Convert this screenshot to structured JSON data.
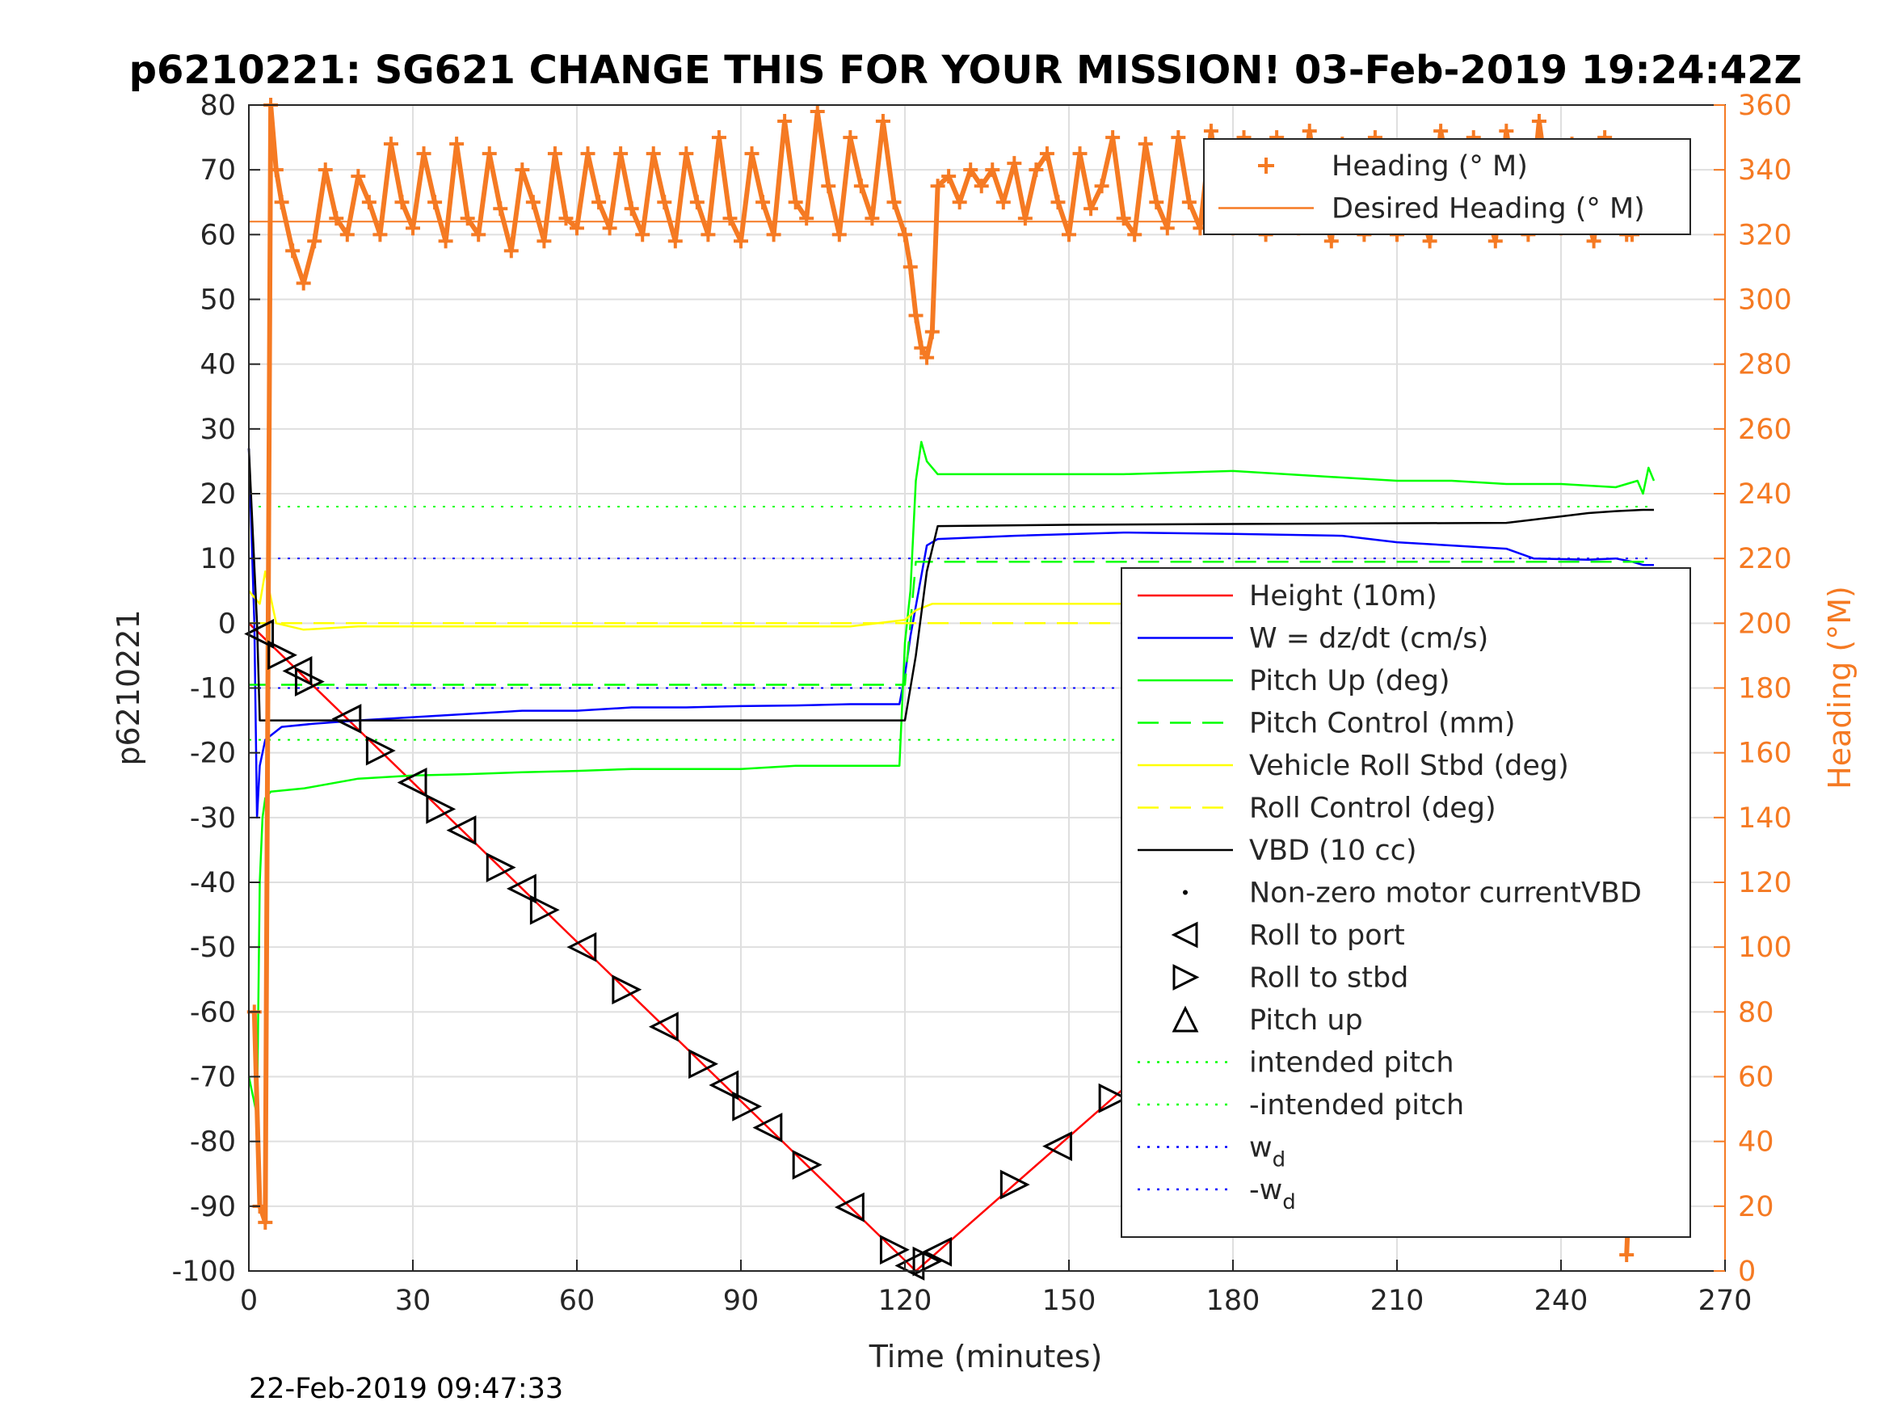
{
  "chart_data": {
    "type": "line",
    "title": "p6210221: SG621 CHANGE THIS FOR YOUR MISSION! 03-Feb-2019 19:24:42Z",
    "xlabel": "Time (minutes)",
    "ylabel": "p6210221",
    "y2label": "Heading (°M)",
    "footer": "22-Feb-2019 09:47:33",
    "xlim": [
      0,
      270
    ],
    "ylim": [
      -100,
      80
    ],
    "y2lim": [
      0,
      360
    ],
    "x_ticks": [
      "0",
      "30",
      "60",
      "90",
      "120",
      "150",
      "180",
      "210",
      "240",
      "270"
    ],
    "y_ticks": [
      "-100",
      "-90",
      "-80",
      "-70",
      "-60",
      "-50",
      "-40",
      "-30",
      "-20",
      "-10",
      "0",
      "10",
      "20",
      "30",
      "40",
      "50",
      "60",
      "70",
      "80"
    ],
    "y2_ticks": [
      "0",
      "20",
      "40",
      "60",
      "80",
      "100",
      "120",
      "140",
      "160",
      "180",
      "200",
      "220",
      "240",
      "260",
      "280",
      "300",
      "320",
      "340",
      "360"
    ],
    "grid": true,
    "legend_heading": [
      {
        "label": "Heading (° M)",
        "color": "#F57A23",
        "style": "marker-plus"
      },
      {
        "label": "Desired Heading (° M)",
        "color": "#F57A23",
        "style": "solid"
      }
    ],
    "legend_main": [
      {
        "label": "Height (10m)",
        "color": "#FF0000",
        "style": "solid"
      },
      {
        "label": "W = dz/dt (cm/s)",
        "color": "#0000FF",
        "style": "solid"
      },
      {
        "label": "Pitch Up (deg)",
        "color": "#00FF00",
        "style": "solid"
      },
      {
        "label": "Pitch Control (mm)",
        "color": "#00FF00",
        "style": "dashed"
      },
      {
        "label": "Vehicle Roll Stbd (deg)",
        "color": "#FFFF00",
        "style": "solid"
      },
      {
        "label": "Roll Control (deg)",
        "color": "#FFFF00",
        "style": "dashed"
      },
      {
        "label": "VBD (10 cc)",
        "color": "#000000",
        "style": "solid"
      },
      {
        "label": "Non-zero motor currentVBD",
        "color": "#000000",
        "style": "dot"
      },
      {
        "label": "Roll to port",
        "color": "#000000",
        "style": "tri-left"
      },
      {
        "label": "Roll to stbd",
        "color": "#000000",
        "style": "tri-right"
      },
      {
        "label": "Pitch up",
        "color": "#000000",
        "style": "tri-up"
      },
      {
        "label": "intended pitch",
        "color": "#00FF00",
        "style": "dotted"
      },
      {
        "label": "-intended pitch",
        "color": "#00FF00",
        "style": "dotted"
      },
      {
        "label": "w",
        "sub": "d",
        "color": "#0000FF",
        "style": "dotted"
      },
      {
        "label": "-w",
        "sub": "d",
        "color": "#0000FF",
        "style": "dotted"
      }
    ],
    "reference_lines": {
      "intended_pitch": 18,
      "w_d": 10,
      "desired_heading": 324
    },
    "series": [
      {
        "name": "Height (10m)",
        "color": "#FF0000",
        "x": [
          0,
          122,
          257
        ],
        "y": [
          0,
          -100,
          0
        ]
      },
      {
        "name": "W = dz/dt (cm/s)",
        "color": "#0000FF",
        "x": [
          0,
          1,
          1.5,
          2,
          3,
          6,
          12,
          20,
          30,
          40,
          50,
          60,
          70,
          80,
          90,
          100,
          110,
          119,
          120,
          121,
          124,
          126,
          140,
          160,
          180,
          200,
          210,
          220,
          230,
          235,
          245,
          250,
          253,
          255,
          257
        ],
        "y": [
          27,
          0,
          -30,
          -22,
          -18,
          -16,
          -15.5,
          -15,
          -14.5,
          -14,
          -13.5,
          -13.5,
          -13,
          -13,
          -12.8,
          -12.7,
          -12.5,
          -12.5,
          -8,
          -2,
          12,
          13,
          13.5,
          14,
          13.8,
          13.5,
          12.5,
          12,
          11.5,
          10,
          9.8,
          10,
          9.5,
          9,
          9
        ]
      },
      {
        "name": "Pitch Up (deg)",
        "color": "#00FF00",
        "x": [
          0,
          1,
          1.5,
          2,
          2.5,
          3,
          4,
          10,
          20,
          30,
          40,
          50,
          60,
          70,
          80,
          90,
          100,
          110,
          119,
          120,
          121,
          122,
          123,
          124,
          126,
          140,
          160,
          180,
          200,
          210,
          220,
          230,
          240,
          250,
          254,
          255,
          256,
          257
        ],
        "y": [
          -70,
          -74,
          -76,
          -40,
          -30,
          -27,
          -26,
          -25.5,
          -24,
          -23.5,
          -23.3,
          -23,
          -22.8,
          -22.5,
          -22.5,
          -22.5,
          -22,
          -22,
          -22,
          -3,
          5,
          22,
          28,
          25,
          23,
          23,
          23,
          23.5,
          22.5,
          22,
          22,
          21.5,
          21.5,
          21,
          22,
          20,
          24,
          22
        ]
      },
      {
        "name": "Pitch Control (mm)",
        "color": "#00FF00",
        "dashed": true,
        "x": [
          0,
          1,
          1.5,
          120,
          121,
          122,
          257
        ],
        "y": [
          -9.5,
          -9.5,
          -9.5,
          -9.5,
          0,
          9.5,
          9.5
        ]
      },
      {
        "name": "Vehicle Roll Stbd (deg)",
        "color": "#FFFF00",
        "x": [
          0,
          2,
          3,
          5,
          10,
          20,
          30,
          40,
          50,
          60,
          70,
          80,
          90,
          100,
          110,
          120,
          122,
          125,
          140,
          160,
          180,
          200,
          220,
          240,
          250,
          257
        ],
        "y": [
          5,
          3,
          8,
          0,
          -1,
          -0.5,
          -0.5,
          -0.5,
          -0.5,
          -0.5,
          -0.5,
          -0.5,
          -0.5,
          -0.5,
          -0.5,
          0.5,
          2,
          3,
          3,
          3,
          3,
          2.5,
          2,
          1.5,
          0.5,
          -1
        ]
      },
      {
        "name": "Roll Control (deg)",
        "color": "#FFFF00",
        "dashed": true,
        "x": [
          0,
          120,
          257
        ],
        "y": [
          0,
          0,
          0
        ]
      },
      {
        "name": "VBD (10 cc)",
        "color": "#000000",
        "x": [
          0,
          1.5,
          2,
          120,
          122,
          124,
          126,
          150,
          200,
          230,
          235,
          240,
          245,
          250,
          255,
          257
        ],
        "y": [
          27,
          0,
          -15,
          -15,
          -5,
          8,
          15,
          15.2,
          15.4,
          15.5,
          16,
          16.5,
          17,
          17.3,
          17.5,
          17.5
        ]
      },
      {
        "name": "Heading (° M)",
        "color": "#F57A23",
        "axis": "right",
        "x": [
          1,
          2,
          3,
          4,
          5,
          6,
          8,
          10,
          12,
          14,
          16,
          18,
          20,
          22,
          24,
          26,
          28,
          30,
          32,
          34,
          36,
          38,
          40,
          42,
          44,
          46,
          48,
          50,
          52,
          54,
          56,
          58,
          60,
          62,
          64,
          66,
          68,
          70,
          72,
          74,
          76,
          78,
          80,
          82,
          84,
          86,
          88,
          90,
          92,
          94,
          96,
          98,
          100,
          102,
          104,
          106,
          108,
          110,
          112,
          114,
          116,
          118,
          120,
          121,
          122,
          123,
          124,
          125,
          126,
          128,
          130,
          132,
          134,
          136,
          138,
          140,
          142,
          144,
          146,
          148,
          150,
          152,
          154,
          156,
          158,
          160,
          162,
          164,
          166,
          168,
          170,
          172,
          174,
          176,
          178,
          180,
          182,
          184,
          186,
          188,
          190,
          192,
          194,
          196,
          198,
          200,
          202,
          204,
          206,
          208,
          210,
          212,
          214,
          216,
          218,
          220,
          222,
          224,
          226,
          228,
          230,
          232,
          234,
          236,
          238,
          240,
          242,
          244,
          246,
          248,
          250,
          252,
          253,
          254
        ],
        "y": [
          80,
          20,
          15,
          360,
          340,
          330,
          315,
          305,
          318,
          340,
          325,
          320,
          338,
          330,
          320,
          348,
          330,
          322,
          345,
          330,
          318,
          348,
          325,
          320,
          345,
          328,
          315,
          340,
          330,
          318,
          345,
          325,
          322,
          345,
          330,
          322,
          345,
          328,
          320,
          345,
          330,
          318,
          345,
          330,
          320,
          350,
          325,
          318,
          345,
          330,
          320,
          355,
          330,
          325,
          358,
          335,
          320,
          350,
          335,
          325,
          355,
          330,
          320,
          310,
          295,
          285,
          282,
          290,
          335,
          338,
          330,
          340,
          335,
          340,
          330,
          342,
          325,
          340,
          345,
          330,
          320,
          345,
          328,
          335,
          350,
          325,
          320,
          348,
          330,
          322,
          350,
          330,
          322,
          352,
          328,
          322,
          350,
          330,
          320,
          350,
          332,
          322,
          352,
          330,
          318,
          348,
          330,
          320,
          350,
          335,
          320,
          345,
          330,
          318,
          352,
          335,
          325,
          350,
          330,
          318,
          352,
          332,
          320,
          355,
          330,
          322,
          348,
          330,
          318,
          350,
          335,
          320,
          320,
          330
        ]
      },
      {
        "name": "Heading ascent tail (° M)",
        "color": "#F57A23",
        "axis": "right",
        "x": [
          252,
          252.5,
          253,
          253.5,
          254,
          254.5,
          255
        ],
        "y": [
          5,
          25,
          55,
          75,
          100,
          120,
          140
        ]
      }
    ]
  }
}
